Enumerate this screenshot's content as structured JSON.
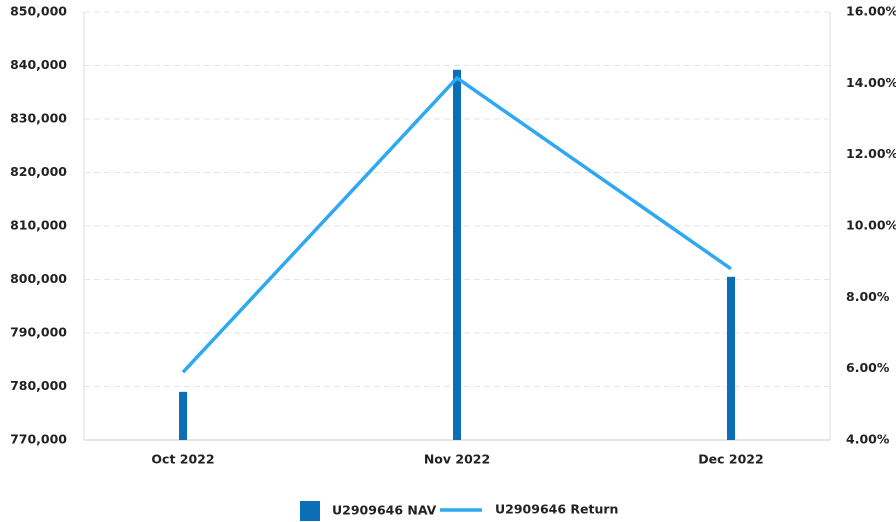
{
  "chart_data": {
    "type": "bar_line",
    "categories": [
      "Oct 2022",
      "Nov 2022",
      "Dec 2022"
    ],
    "series": [
      {
        "name": "U2909646 NAV",
        "color": "#0b6fb8",
        "type": "bar",
        "values": [
          779000,
          839200,
          800500
        ]
      },
      {
        "name": "U2909646 Return",
        "color": "#2ea8f2",
        "type": "line",
        "axis": "y2",
        "values": [
          5.9,
          14.15,
          8.8
        ]
      }
    ],
    "ylim": [
      770000,
      850000
    ],
    "yticks": [
      {
        "value": 770000,
        "label": "770,000"
      },
      {
        "value": 780000,
        "label": "780,000"
      },
      {
        "value": 790000,
        "label": "790,000"
      },
      {
        "value": 800000,
        "label": "800,000"
      },
      {
        "value": 810000,
        "label": "810,000"
      },
      {
        "value": 820000,
        "label": "820,000"
      },
      {
        "value": 830000,
        "label": "830,000"
      },
      {
        "value": 840000,
        "label": "840,000"
      },
      {
        "value": 850000,
        "label": "850,000"
      }
    ],
    "y2lim": [
      4,
      16
    ],
    "y2ticks": [
      {
        "value": 4,
        "label": "4.00%"
      },
      {
        "value": 6,
        "label": "6.00%"
      },
      {
        "value": 8,
        "label": "8.00%"
      },
      {
        "value": 10,
        "label": "10.00%"
      },
      {
        "value": 12,
        "label": "12.00%"
      },
      {
        "value": 14,
        "label": "14.00%"
      },
      {
        "value": 16,
        "label": "16.00%"
      }
    ],
    "grid": true,
    "legend": "bottom"
  }
}
